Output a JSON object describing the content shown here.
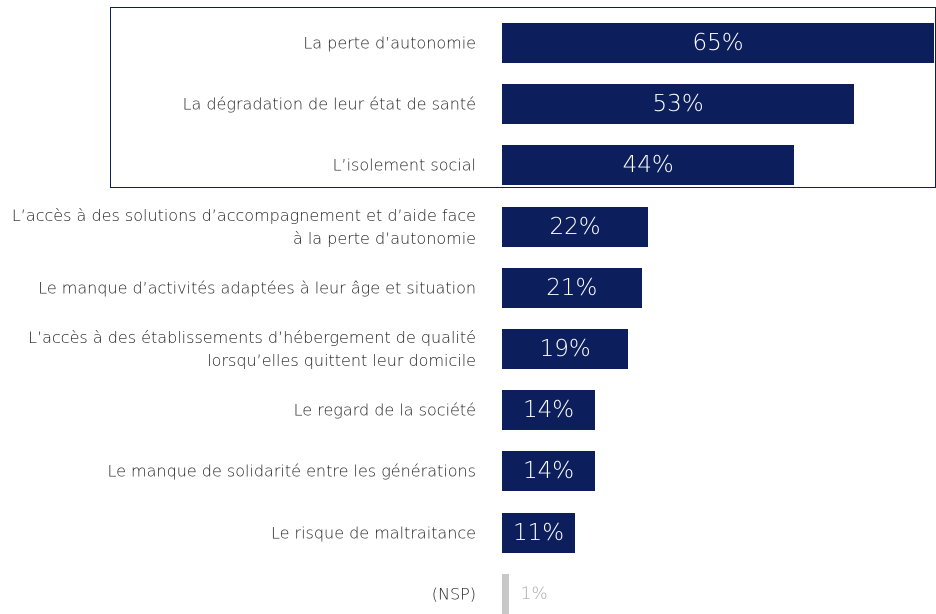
{
  "chart_data": {
    "type": "bar",
    "categories": [
      "La perte d’autonomie",
      "La dégradation de leur état de santé",
      "L’isolement social",
      "L’accès à des solutions d’accompagnement et d’aide face à la perte d’autonomie",
      "Le manque d’activités adaptées à leur âge et situation",
      "L’accès à des établissements d’hébergement de qualité lorsqu’elles quittent leur domicile",
      "Le regard de la société",
      "Le manque de solidarité entre les générations",
      "Le risque de maltraitance",
      "(NSP)"
    ],
    "values": [
      65,
      53,
      44,
      22,
      21,
      19,
      14,
      14,
      11,
      1
    ],
    "value_labels": [
      "65%",
      "53%",
      "44%",
      "22%",
      "21%",
      "19%",
      "14%",
      "14%",
      "11%",
      "1%"
    ],
    "colors": [
      "#0c1f5c",
      "#0c1f5c",
      "#0c1f5c",
      "#0c1f5c",
      "#0c1f5c",
      "#0c1f5c",
      "#0c1f5c",
      "#0c1f5c",
      "#0c1f5c",
      "#c8c8c8"
    ]
  }
}
